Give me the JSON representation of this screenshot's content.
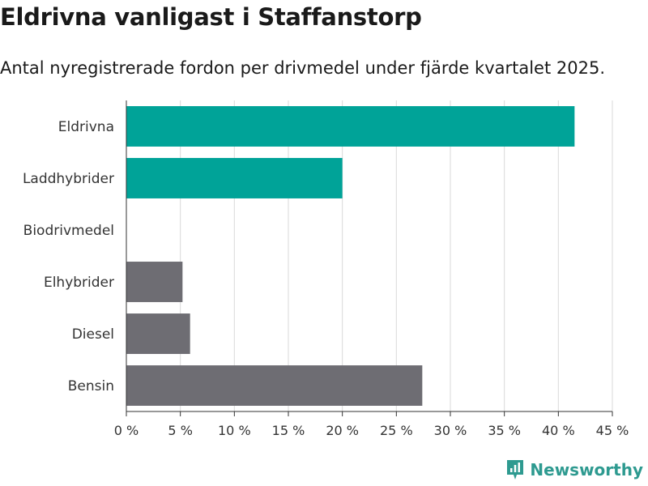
{
  "title": "Eldrivna vanligast i Staffanstorp",
  "subtitle": "Antal nyregistrerade fordon per drivmedel under fjärde kvartalet 2025.",
  "brand": {
    "name": "Newsworthy",
    "icon": "newsworthy-logo-icon"
  },
  "colors": {
    "highlight": "#00a398",
    "neutral": "#6e6d73",
    "grid": "#d9d9d9",
    "axis": "#333333",
    "brand": "#2e9a90"
  },
  "chart_data": {
    "type": "bar",
    "orientation": "horizontal",
    "categories": [
      "Eldrivna",
      "Laddhybrider",
      "Biodrivmedel",
      "Elhybrider",
      "Diesel",
      "Bensin"
    ],
    "values": [
      41.5,
      20.0,
      0.0,
      5.2,
      5.9,
      27.4
    ],
    "highlight": [
      true,
      true,
      false,
      false,
      false,
      false
    ],
    "unit": "%",
    "xlim": [
      0,
      45
    ],
    "xticks": [
      0,
      5,
      10,
      15,
      20,
      25,
      30,
      35,
      40,
      45
    ],
    "xtick_labels": [
      "0 %",
      "5 %",
      "10 %",
      "15 %",
      "20 %",
      "25 %",
      "30 %",
      "35 %",
      "40 %",
      "45 %"
    ],
    "grid": true,
    "xlabel": "",
    "ylabel": ""
  }
}
